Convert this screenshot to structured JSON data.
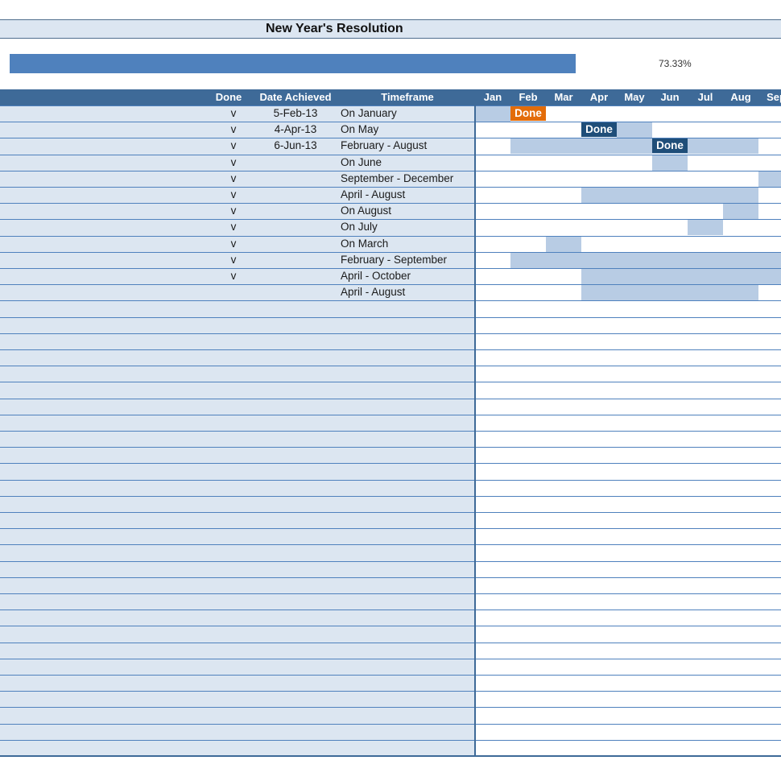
{
  "title": "New Year's Resolution",
  "progress": {
    "percent": 73.33,
    "label": "73.33%"
  },
  "colors": {
    "header_bg": "#3e6a98",
    "left_panel_bg": "#dce6f1",
    "gantt_bar": "#b8cce4",
    "progress_fill": "#4f81bd",
    "done_orange": "#e36c09",
    "done_blue": "#1f4e79"
  },
  "columns": {
    "done": "Done",
    "date_achieved": "Date Achieved",
    "timeframe": "Timeframe"
  },
  "months": [
    "Jan",
    "Feb",
    "Mar",
    "Apr",
    "May",
    "Jun",
    "Jul",
    "Aug",
    "Sep"
  ],
  "rows": [
    {
      "done": "v",
      "date": "5-Feb-13",
      "timeframe": "On January",
      "start": 1,
      "end": 1,
      "done_month": 2,
      "done_style": "orange"
    },
    {
      "done": "v",
      "date": "4-Apr-13",
      "timeframe": "On May",
      "start": 5,
      "end": 5,
      "done_month": 4,
      "done_style": "blue"
    },
    {
      "done": "v",
      "date": "6-Jun-13",
      "timeframe": "February - August",
      "start": 2,
      "end": 8,
      "done_month": 6,
      "done_style": "blue"
    },
    {
      "done": "v",
      "date": "",
      "timeframe": "On June",
      "start": 6,
      "end": 6
    },
    {
      "done": "v",
      "date": "",
      "timeframe": "September - December",
      "start": 9,
      "end": 12
    },
    {
      "done": "v",
      "date": "",
      "timeframe": "April - August",
      "start": 4,
      "end": 8
    },
    {
      "done": "v",
      "date": "",
      "timeframe": "On August",
      "start": 8,
      "end": 8
    },
    {
      "done": "v",
      "date": "",
      "timeframe": "On July",
      "start": 7,
      "end": 7
    },
    {
      "done": "v",
      "date": "",
      "timeframe": "On March",
      "start": 3,
      "end": 3
    },
    {
      "done": "v",
      "date": "",
      "timeframe": "February - September",
      "start": 2,
      "end": 9
    },
    {
      "done": "v",
      "date": "",
      "timeframe": "April - October",
      "start": 4,
      "end": 10
    },
    {
      "done": "",
      "date": "",
      "timeframe": "April - August",
      "start": 4,
      "end": 8
    }
  ],
  "done_tag_label": "Done",
  "empty_row_count": 28
}
